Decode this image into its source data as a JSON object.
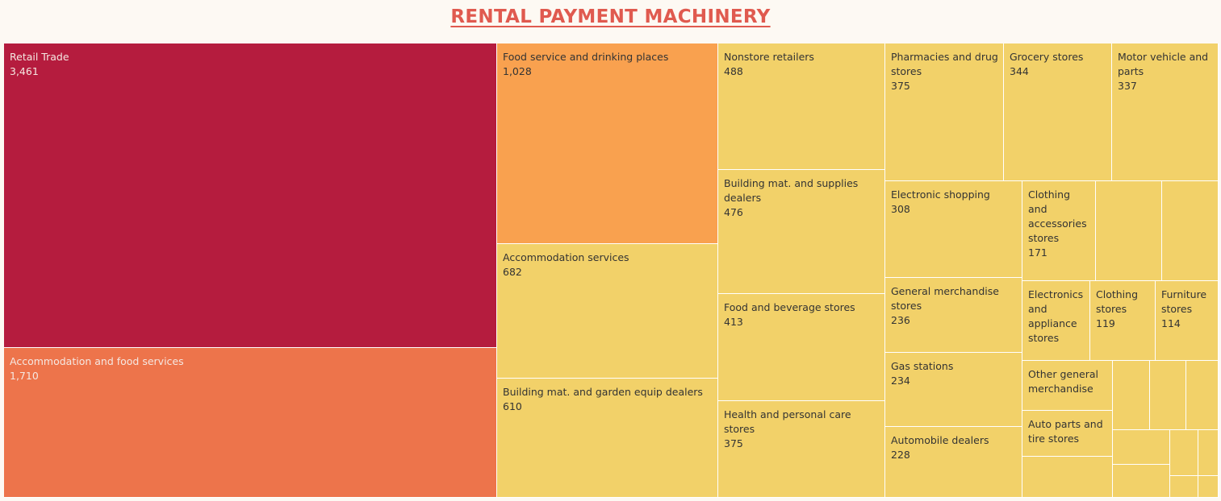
{
  "title": "RENTAL PAYMENT MACHINERY",
  "colors": {
    "background": "#fdf9f3",
    "title": "#e05a4f",
    "level_1": "#b51c3e",
    "level_2": "#ed744b",
    "level_3": "#f9a14f",
    "level_4": "#f2d169",
    "text_dark": "#333333",
    "text_light": "#f5e8e2"
  },
  "chart_data": {
    "type": "treemap",
    "title": "RENTAL PAYMENT MACHINERY",
    "color_scale": [
      "#f2d169",
      "#f9a14f",
      "#ed744b",
      "#b51c3e"
    ],
    "items": [
      {
        "label": "Retail Trade",
        "value": 3461,
        "display": "3,461",
        "color": "#b51c3e",
        "text": "light"
      },
      {
        "label": "Accommodation and food services",
        "value": 1710,
        "display": "1,710",
        "color": "#ed744b",
        "text": "light"
      },
      {
        "label": "Food service and drinking places",
        "value": 1028,
        "display": "1,028",
        "color": "#f9a14f",
        "text": "dark"
      },
      {
        "label": "Accommodation services",
        "value": 682,
        "display": "682",
        "color": "#f2d169",
        "text": "dark"
      },
      {
        "label": "Building mat. and garden equip dealers",
        "value": 610,
        "display": "610",
        "color": "#f2d169",
        "text": "dark"
      },
      {
        "label": "Nonstore retailers",
        "value": 488,
        "display": "488",
        "color": "#f2d169",
        "text": "dark"
      },
      {
        "label": "Building mat. and supplies dealers",
        "value": 476,
        "display": "476",
        "color": "#f2d169",
        "text": "dark"
      },
      {
        "label": "Food and beverage stores",
        "value": 413,
        "display": "413",
        "color": "#f2d169",
        "text": "dark"
      },
      {
        "label": "Health and personal care stores",
        "value": 375,
        "display": "375",
        "color": "#f2d169",
        "text": "dark"
      },
      {
        "label": "Pharmacies and drug stores",
        "value": 375,
        "display": "375",
        "color": "#f2d169",
        "text": "dark"
      },
      {
        "label": "Grocery stores",
        "value": 344,
        "display": "344",
        "color": "#f2d169",
        "text": "dark"
      },
      {
        "label": "Motor vehicle and parts",
        "value": 337,
        "display": "337",
        "color": "#f2d169",
        "text": "dark"
      },
      {
        "label": "Electronic shopping",
        "value": 308,
        "display": "308",
        "color": "#f2d169",
        "text": "dark"
      },
      {
        "label": "General merchandise stores",
        "value": 236,
        "display": "236",
        "color": "#f2d169",
        "text": "dark"
      },
      {
        "label": "Gas stations",
        "value": 234,
        "display": "234",
        "color": "#f2d169",
        "text": "dark"
      },
      {
        "label": "Automobile dealers",
        "value": 228,
        "display": "228",
        "color": "#f2d169",
        "text": "dark"
      },
      {
        "label": "Clothing and accessories stores",
        "value": 171,
        "display": "171",
        "color": "#f2d169",
        "text": "dark"
      },
      {
        "label": "",
        "value": null,
        "display": "",
        "color": "#f2d169",
        "text": "dark"
      },
      {
        "label": "",
        "value": null,
        "display": "",
        "color": "#f2d169",
        "text": "dark"
      },
      {
        "label": "Electronics and appliance stores",
        "value": null,
        "display": "",
        "color": "#f2d169",
        "text": "dark"
      },
      {
        "label": "Clothing stores",
        "value": 119,
        "display": "119",
        "color": "#f2d169",
        "text": "dark"
      },
      {
        "label": "Furniture stores",
        "value": 114,
        "display": "114",
        "color": "#f2d169",
        "text": "dark"
      },
      {
        "label": "Other general merchandise",
        "value": null,
        "display": "",
        "color": "#f2d169",
        "text": "dark"
      },
      {
        "label": "Auto parts and tire stores",
        "value": null,
        "display": "",
        "color": "#f2d169",
        "text": "dark"
      },
      {
        "label": "",
        "value": null,
        "display": "",
        "color": "#f2d169",
        "text": "dark"
      },
      {
        "label": "",
        "value": null,
        "display": "",
        "color": "#f2d169",
        "text": "dark"
      },
      {
        "label": "",
        "value": null,
        "display": "",
        "color": "#f2d169",
        "text": "dark"
      },
      {
        "label": "",
        "value": null,
        "display": "",
        "color": "#f2d169",
        "text": "dark"
      },
      {
        "label": "",
        "value": null,
        "display": "",
        "color": "#f2d169",
        "text": "dark"
      },
      {
        "label": "",
        "value": null,
        "display": "",
        "color": "#f2d169",
        "text": "dark"
      },
      {
        "label": "",
        "value": null,
        "display": "",
        "color": "#f2d169",
        "text": "dark"
      },
      {
        "label": "",
        "value": null,
        "display": "",
        "color": "#f2d169",
        "text": "dark"
      },
      {
        "label": "",
        "value": null,
        "display": "",
        "color": "#f2d169",
        "text": "dark"
      },
      {
        "label": "",
        "value": null,
        "display": "",
        "color": "#f2d169",
        "text": "dark"
      }
    ]
  }
}
